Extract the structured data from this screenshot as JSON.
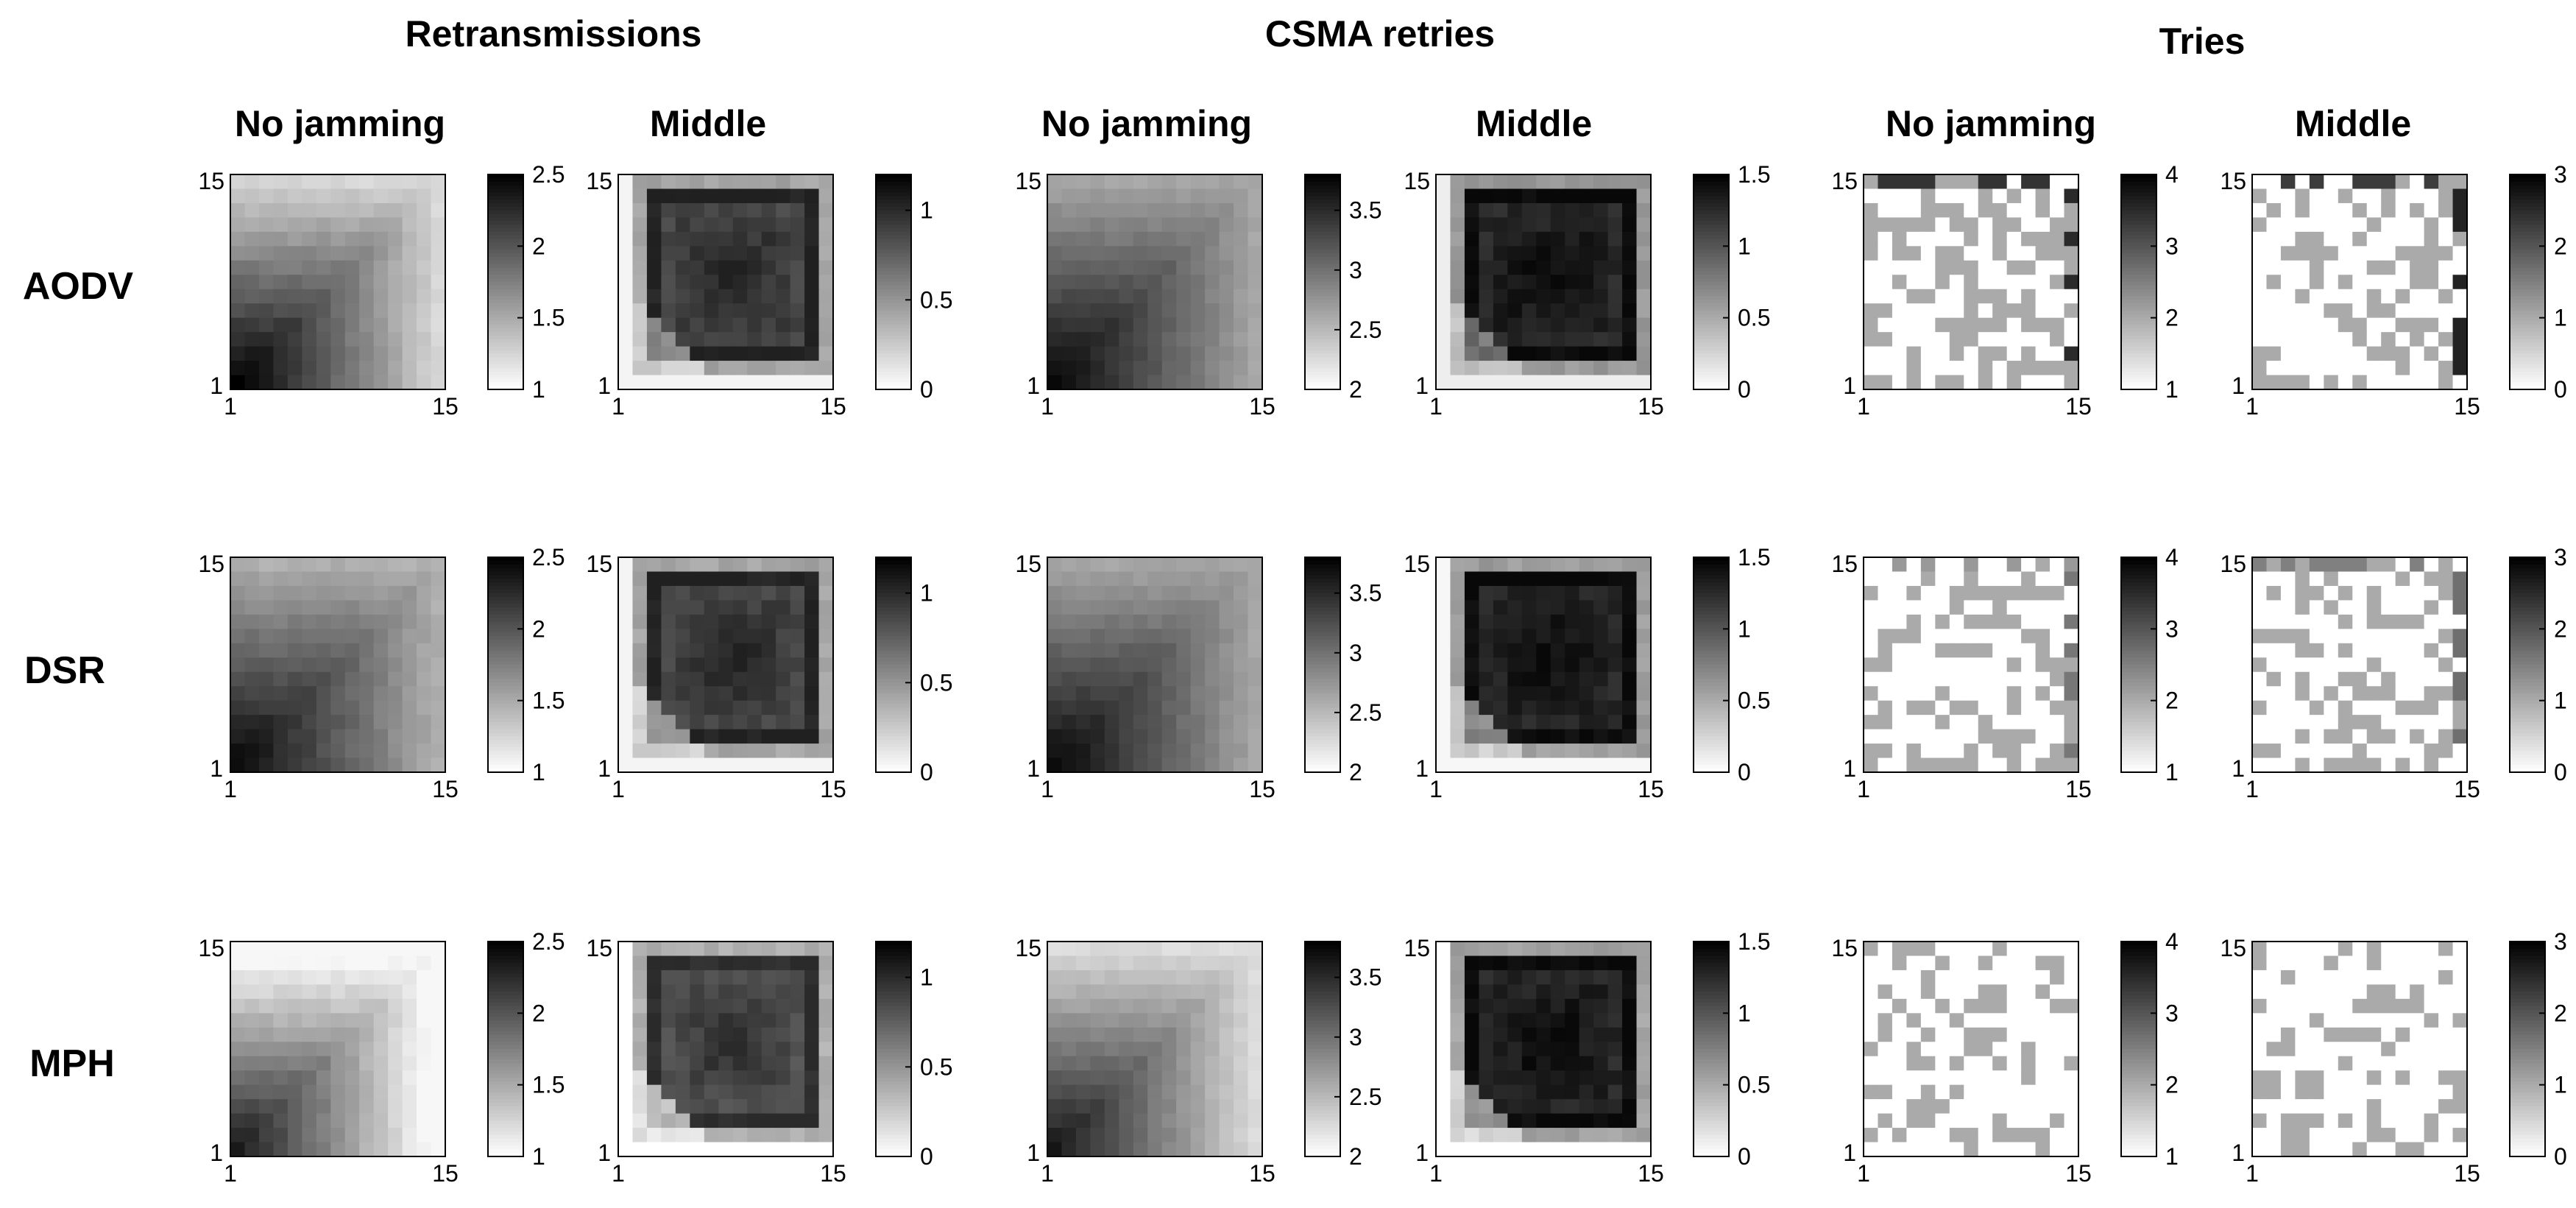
{
  "figure": {
    "groups": [
      "Retransmissions",
      "CSMA retries",
      "Tries"
    ],
    "subtitles": [
      "No jamming",
      "Middle",
      "No jamming",
      "Middle",
      "No jamming",
      "Middle"
    ],
    "rows": [
      "AODV",
      "DSR",
      "MPH"
    ]
  },
  "chart_data": {
    "type": "heatmap",
    "grid": {
      "cols": 15,
      "rows": 15,
      "axis_ticks": [
        "1",
        "15"
      ]
    },
    "colormap": "gray (white = low, black = high)",
    "colorbars": [
      {
        "metric": "Retransmissions",
        "scenario": "No jamming",
        "range": [
          1,
          2.5
        ],
        "ticks": [
          1,
          1.5,
          2,
          2.5
        ]
      },
      {
        "metric": "Retransmissions",
        "scenario": "Middle",
        "range": [
          0,
          1.2
        ],
        "ticks": [
          0,
          0.5,
          1
        ]
      },
      {
        "metric": "CSMA retries",
        "scenario": "No jamming",
        "range": [
          2,
          3.8
        ],
        "ticks": [
          2,
          2.5,
          3,
          3.5
        ]
      },
      {
        "metric": "CSMA retries",
        "scenario": "Middle",
        "range": [
          0,
          1.5
        ],
        "ticks": [
          0,
          0.5,
          1,
          1.5
        ]
      },
      {
        "metric": "Tries",
        "scenario": "No jamming",
        "range": [
          1,
          4
        ],
        "ticks": [
          1,
          2,
          3,
          4
        ]
      },
      {
        "metric": "Tries",
        "scenario": "Middle",
        "range": [
          0,
          3
        ],
        "ticks": [
          0,
          1,
          2,
          3
        ]
      }
    ],
    "panels": [
      {
        "protocol": "AODV",
        "metric": "Retransmissions",
        "scenario": "No jamming",
        "pattern": "corner",
        "params": {
          "vmin": 1.2,
          "vmax": 2.5,
          "decay": 0.09
        }
      },
      {
        "protocol": "AODV",
        "metric": "Retransmissions",
        "scenario": "Middle",
        "pattern": "middle",
        "params": {
          "vmin": 0.05,
          "vmax": 1.05,
          "edge": 0.55
        }
      },
      {
        "protocol": "AODV",
        "metric": "CSMA retries",
        "scenario": "No jamming",
        "pattern": "corner",
        "params": {
          "vmin": 2.5,
          "vmax": 3.75,
          "decay": 0.08
        }
      },
      {
        "protocol": "AODV",
        "metric": "CSMA retries",
        "scenario": "Middle",
        "pattern": "middle",
        "params": {
          "vmin": 0.1,
          "vmax": 1.45,
          "edge": 0.6
        }
      },
      {
        "protocol": "AODV",
        "metric": "Tries",
        "scenario": "No jamming",
        "pattern": "sparse",
        "params": {
          "base": 1,
          "mark": 2,
          "density": 0.42,
          "top_row": 3.4,
          "right_col": 3.5
        }
      },
      {
        "protocol": "AODV",
        "metric": "Tries",
        "scenario": "Middle",
        "pattern": "sparse",
        "params": {
          "base": 0,
          "mark": 1,
          "density": 0.4,
          "top_row": 2.3,
          "right_col": 2.6
        }
      },
      {
        "protocol": "DSR",
        "metric": "Retransmissions",
        "scenario": "No jamming",
        "pattern": "corner",
        "params": {
          "vmin": 1.4,
          "vmax": 2.45,
          "decay": 0.07
        }
      },
      {
        "protocol": "DSR",
        "metric": "Retransmissions",
        "scenario": "Middle",
        "pattern": "middle",
        "params": {
          "vmin": 0.05,
          "vmax": 1.05,
          "edge": 0.5
        }
      },
      {
        "protocol": "DSR",
        "metric": "CSMA retries",
        "scenario": "No jamming",
        "pattern": "corner",
        "params": {
          "vmin": 2.4,
          "vmax": 3.75,
          "decay": 0.08
        }
      },
      {
        "protocol": "DSR",
        "metric": "CSMA retries",
        "scenario": "Middle",
        "pattern": "middle",
        "params": {
          "vmin": 0.05,
          "vmax": 1.45,
          "edge": 0.5
        }
      },
      {
        "protocol": "DSR",
        "metric": "Tries",
        "scenario": "No jamming",
        "pattern": "sparse",
        "params": {
          "base": 1,
          "mark": 2,
          "density": 0.4,
          "top_row": 2.2,
          "right_col": 2.6
        }
      },
      {
        "protocol": "DSR",
        "metric": "Tries",
        "scenario": "Middle",
        "pattern": "sparse",
        "params": {
          "base": 0,
          "mark": 1,
          "density": 0.38,
          "top_row": 1.5,
          "right_col": 1.7
        }
      },
      {
        "protocol": "MPH",
        "metric": "Retransmissions",
        "scenario": "No jamming",
        "pattern": "corner",
        "params": {
          "vmin": 1.05,
          "vmax": 2.35,
          "decay": 0.1
        }
      },
      {
        "protocol": "MPH",
        "metric": "Retransmissions",
        "scenario": "Middle",
        "pattern": "middle",
        "params": {
          "vmin": 0.0,
          "vmax": 1.0,
          "edge": 0.35
        }
      },
      {
        "protocol": "MPH",
        "metric": "CSMA retries",
        "scenario": "No jamming",
        "pattern": "corner",
        "params": {
          "vmin": 2.05,
          "vmax": 3.65,
          "decay": 0.1
        }
      },
      {
        "protocol": "MPH",
        "metric": "CSMA retries",
        "scenario": "Middle",
        "pattern": "middle",
        "params": {
          "vmin": 0.0,
          "vmax": 1.45,
          "edge": 0.45
        }
      },
      {
        "protocol": "MPH",
        "metric": "Tries",
        "scenario": "No jamming",
        "pattern": "sparse",
        "params": {
          "base": 1,
          "mark": 2,
          "density": 0.3,
          "top_row": 1,
          "right_col": 1
        }
      },
      {
        "protocol": "MPH",
        "metric": "Tries",
        "scenario": "Middle",
        "pattern": "sparse",
        "params": {
          "base": 0,
          "mark": 1,
          "density": 0.3,
          "top_row": 0,
          "right_col": 0
        }
      }
    ]
  }
}
